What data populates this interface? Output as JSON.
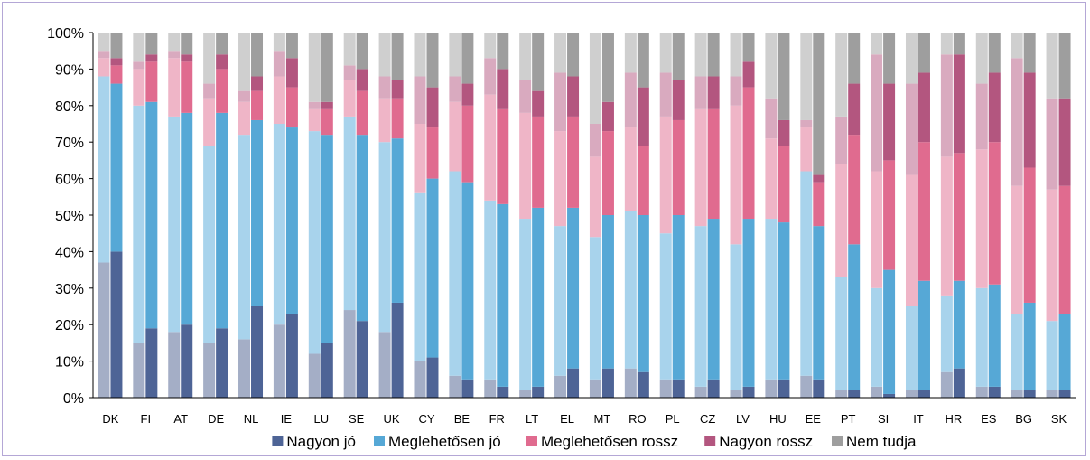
{
  "chart_data": {
    "type": "bar",
    "stacked": true,
    "paired": true,
    "title": "",
    "xlabel": "",
    "ylabel": "",
    "ylim": [
      0,
      100
    ],
    "yticks": [
      "0%",
      "10%",
      "20%",
      "30%",
      "40%",
      "50%",
      "60%",
      "70%",
      "80%",
      "90%",
      "100%"
    ],
    "grid": false,
    "legend_position": "bottom",
    "categories": [
      "DK",
      "FI",
      "AT",
      "DE",
      "NL",
      "IE",
      "LU",
      "SE",
      "UK",
      "CY",
      "BE",
      "FR",
      "LT",
      "EL",
      "MT",
      "RO",
      "PL",
      "CZ",
      "LV",
      "HU",
      "EE",
      "PT",
      "SI",
      "IT",
      "HR",
      "ES",
      "BG",
      "SK"
    ],
    "series": [
      {
        "name": "Nagyon jó",
        "color": "#4e6496",
        "faded_color": "#a4aec6",
        "values_first": [
          37,
          15,
          18,
          15,
          16,
          20,
          12,
          24,
          18,
          10,
          6,
          5,
          2,
          6,
          5,
          8,
          5,
          3,
          2,
          5,
          6,
          2,
          3,
          2,
          7,
          3,
          2,
          2
        ],
        "values_second": [
          40,
          19,
          20,
          19,
          25,
          23,
          15,
          21,
          26,
          11,
          5,
          3,
          3,
          8,
          8,
          7,
          5,
          5,
          3,
          5,
          5,
          2,
          1,
          2,
          8,
          3,
          2,
          2
        ]
      },
      {
        "name": "Meglehetősen jó",
        "color": "#56a8d6",
        "faded_color": "#a8d3ec",
        "values_first": [
          51,
          65,
          59,
          54,
          56,
          55,
          61,
          53,
          52,
          46,
          56,
          49,
          47,
          41,
          39,
          43,
          40,
          44,
          40,
          44,
          56,
          31,
          27,
          23,
          21,
          27,
          21,
          19
        ],
        "values_second": [
          46,
          62,
          58,
          59,
          51,
          51,
          57,
          51,
          45,
          49,
          54,
          50,
          49,
          44,
          42,
          43,
          45,
          44,
          46,
          43,
          42,
          40,
          34,
          30,
          24,
          28,
          24,
          21
        ]
      },
      {
        "name": "Meglehetősen rossz",
        "color": "#e06b8f",
        "faded_color": "#efb5c7",
        "values_first": [
          5,
          10,
          16,
          13,
          9,
          13,
          6,
          10,
          12,
          19,
          19,
          29,
          29,
          26,
          22,
          23,
          32,
          32,
          38,
          22,
          12,
          31,
          32,
          36,
          38,
          38,
          35,
          36
        ],
        "values_second": [
          5,
          11,
          14,
          12,
          8,
          11,
          7,
          12,
          11,
          14,
          21,
          26,
          25,
          25,
          23,
          19,
          26,
          30,
          36,
          21,
          12,
          30,
          30,
          38,
          35,
          39,
          37,
          35
        ]
      },
      {
        "name": "Nagyon rossz",
        "color": "#b3567f",
        "faded_color": "#d9aabf",
        "values_first": [
          2,
          2,
          2,
          4,
          3,
          7,
          2,
          4,
          6,
          13,
          7,
          10,
          9,
          16,
          9,
          15,
          12,
          9,
          8,
          11,
          2,
          13,
          32,
          25,
          28,
          18,
          35,
          25
        ],
        "values_second": [
          2,
          2,
          2,
          4,
          4,
          8,
          2,
          6,
          5,
          11,
          6,
          11,
          7,
          11,
          8,
          16,
          11,
          9,
          7,
          7,
          2,
          14,
          21,
          19,
          27,
          19,
          26,
          24
        ]
      },
      {
        "name": "Nem tudja",
        "color": "#9e9e9e",
        "faded_color": "#cfcfcf",
        "values_first": [
          5,
          8,
          5,
          14,
          16,
          5,
          19,
          9,
          12,
          12,
          12,
          7,
          13,
          11,
          25,
          11,
          11,
          12,
          12,
          18,
          24,
          23,
          6,
          14,
          6,
          14,
          7,
          18
        ],
        "values_second": [
          7,
          6,
          6,
          6,
          12,
          7,
          19,
          10,
          13,
          15,
          14,
          10,
          16,
          12,
          19,
          15,
          13,
          12,
          8,
          24,
          39,
          14,
          14,
          11,
          6,
          11,
          11,
          18
        ]
      }
    ]
  }
}
